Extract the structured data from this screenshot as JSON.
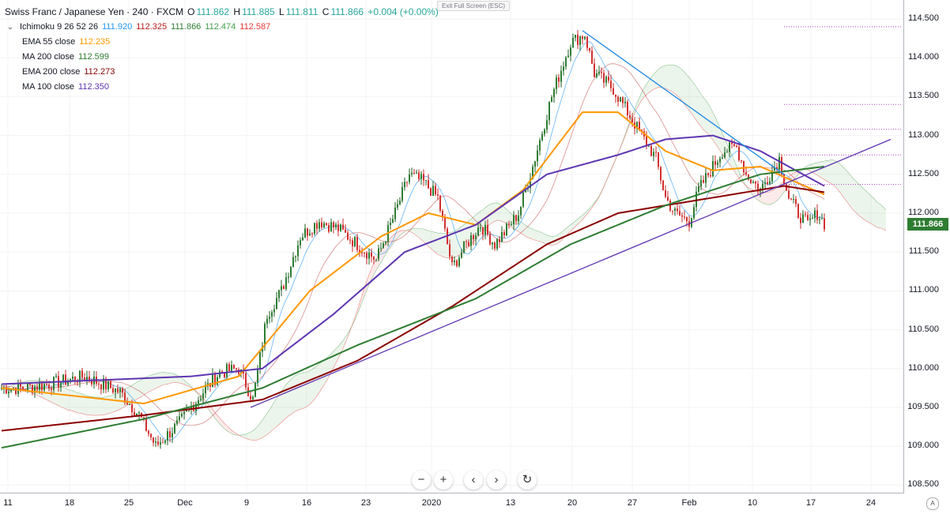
{
  "header": {
    "symbol": "Swiss Franc / Japanese Yen · 240 · FXCM",
    "ohlc": {
      "o_label": "O",
      "o": "111.862",
      "h_label": "H",
      "h": "111.885",
      "l_label": "L",
      "l": "111.811",
      "c_label": "C",
      "c": "111.866",
      "change": "+0.004 (+0.00%)"
    },
    "up_color": "#26a69a"
  },
  "exit_fullscreen": "Exit Full Screen (ESC)",
  "indicators": [
    {
      "name": "Ichimoku 9 26 52 26",
      "values": [
        {
          "v": "111.920",
          "color": "#2196f3"
        },
        {
          "v": "112.325",
          "color": "#b71c1c"
        },
        {
          "v": "111.866",
          "color": "#2e7d32"
        },
        {
          "v": "112.474",
          "color": "#43a047"
        },
        {
          "v": "112.587",
          "color": "#e53935"
        }
      ]
    },
    {
      "name": "EMA 55 close",
      "values": [
        {
          "v": "112.235",
          "color": "#ff9800"
        }
      ]
    },
    {
      "name": "MA 200 close",
      "values": [
        {
          "v": "112.599",
          "color": "#2e7d32"
        }
      ]
    },
    {
      "name": "EMA 200 close",
      "values": [
        {
          "v": "112.273",
          "color": "#8b0000"
        }
      ]
    },
    {
      "name": "MA 100 close",
      "values": [
        {
          "v": "112.350",
          "color": "#5e35b1"
        }
      ]
    }
  ],
  "price_label": "111.866",
  "price_label_color": "#2e7d32",
  "y_ticks": [
    "114.500",
    "114.000",
    "113.500",
    "113.000",
    "112.500",
    "112.000",
    "111.500",
    "111.000",
    "110.500",
    "110.000",
    "109.500",
    "109.000",
    "108.500"
  ],
  "x_ticks": [
    "11",
    "18",
    "25",
    "Dec",
    "9",
    "16",
    "23",
    "2020",
    "13",
    "20",
    "27",
    "Feb",
    "10",
    "17",
    "24"
  ],
  "controls": [
    {
      "name": "zoom-out-button",
      "glyph": "−"
    },
    {
      "name": "zoom-in-button",
      "glyph": "+"
    },
    {
      "name": "scroll-left-button",
      "glyph": "‹"
    },
    {
      "name": "scroll-right-button",
      "glyph": "›"
    },
    {
      "name": "reset-chart-button",
      "glyph": "↻"
    }
  ],
  "auto_scale_label": "A",
  "chart_data": {
    "type": "candlestick",
    "timeframe": "240",
    "x_labels": [
      "11",
      "18",
      "25",
      "Dec",
      "9",
      "16",
      "23",
      "2020",
      "13",
      "20",
      "27",
      "Feb",
      "10",
      "17",
      "24"
    ],
    "ylim": [
      108.5,
      114.55
    ],
    "y_ticks": [
      108.5,
      109.0,
      109.5,
      110.0,
      110.5,
      111.0,
      111.5,
      112.0,
      112.5,
      113.0,
      113.5,
      114.0,
      114.5
    ],
    "close_path_bars": [
      [
        0,
        109.75
      ],
      [
        10,
        109.75
      ],
      [
        20,
        109.8
      ],
      [
        35,
        109.9
      ],
      [
        50,
        109.7
      ],
      [
        58,
        109.4
      ],
      [
        65,
        109.0
      ],
      [
        75,
        109.3
      ],
      [
        85,
        109.7
      ],
      [
        92,
        109.95
      ],
      [
        100,
        110.0
      ],
      [
        106,
        109.6
      ],
      [
        112,
        110.7
      ],
      [
        118,
        111.0
      ],
      [
        126,
        111.7
      ],
      [
        134,
        111.9
      ],
      [
        142,
        111.8
      ],
      [
        150,
        111.6
      ],
      [
        158,
        111.4
      ],
      [
        166,
        112.0
      ],
      [
        172,
        112.5
      ],
      [
        178,
        112.4
      ],
      [
        184,
        112.2
      ],
      [
        190,
        111.3
      ],
      [
        196,
        111.6
      ],
      [
        202,
        111.85
      ],
      [
        208,
        111.6
      ],
      [
        212,
        111.75
      ],
      [
        218,
        112.0
      ],
      [
        224,
        112.6
      ],
      [
        232,
        113.5
      ],
      [
        240,
        114.2
      ],
      [
        246,
        114.3
      ],
      [
        250,
        113.8
      ],
      [
        258,
        113.6
      ],
      [
        264,
        113.3
      ],
      [
        270,
        113.0
      ],
      [
        276,
        112.7
      ],
      [
        280,
        112.2
      ],
      [
        284,
        112.0
      ],
      [
        290,
        111.9
      ],
      [
        294,
        112.3
      ],
      [
        298,
        112.5
      ],
      [
        304,
        112.8
      ],
      [
        310,
        112.85
      ],
      [
        314,
        112.5
      ],
      [
        320,
        112.3
      ],
      [
        324,
        112.5
      ],
      [
        328,
        112.7
      ],
      [
        332,
        112.2
      ],
      [
        336,
        112.0
      ],
      [
        340,
        111.85
      ],
      [
        344,
        112.0
      ],
      [
        347,
        111.87
      ]
    ],
    "series": [
      {
        "name": "EMA 55 close",
        "color": "#ff9800",
        "last": 112.235,
        "points": [
          [
            0,
            109.75
          ],
          [
            60,
            109.55
          ],
          [
            100,
            109.9
          ],
          [
            130,
            111.0
          ],
          [
            160,
            111.7
          ],
          [
            180,
            112.0
          ],
          [
            200,
            111.85
          ],
          [
            220,
            112.3
          ],
          [
            245,
            113.3
          ],
          [
            260,
            113.3
          ],
          [
            280,
            112.8
          ],
          [
            300,
            112.55
          ],
          [
            320,
            112.6
          ],
          [
            347,
            112.24
          ]
        ]
      },
      {
        "name": "MA 100 close",
        "color": "#5e35b1",
        "last": 112.35,
        "points": [
          [
            0,
            109.8
          ],
          [
            40,
            109.85
          ],
          [
            80,
            109.9
          ],
          [
            110,
            110.0
          ],
          [
            140,
            110.7
          ],
          [
            170,
            111.5
          ],
          [
            200,
            111.85
          ],
          [
            230,
            112.5
          ],
          [
            260,
            112.75
          ],
          [
            280,
            112.95
          ],
          [
            300,
            113.0
          ],
          [
            320,
            112.8
          ],
          [
            347,
            112.35
          ]
        ]
      },
      {
        "name": "EMA 200 close",
        "color": "#8b0000",
        "last": 112.273,
        "points": [
          [
            0,
            109.2
          ],
          [
            60,
            109.4
          ],
          [
            110,
            109.6
          ],
          [
            150,
            110.1
          ],
          [
            190,
            110.8
          ],
          [
            230,
            111.6
          ],
          [
            260,
            112.0
          ],
          [
            300,
            112.2
          ],
          [
            330,
            112.35
          ],
          [
            347,
            112.27
          ]
        ]
      },
      {
        "name": "MA 200 close",
        "color": "#2e7d32",
        "last": 112.599,
        "points": [
          [
            0,
            108.98
          ],
          [
            60,
            109.35
          ],
          [
            110,
            109.75
          ],
          [
            150,
            110.3
          ],
          [
            200,
            110.9
          ],
          [
            240,
            111.6
          ],
          [
            280,
            112.1
          ],
          [
            320,
            112.5
          ],
          [
            347,
            112.6
          ]
        ]
      }
    ],
    "trendlines": [
      {
        "color": "#1e88e5",
        "from": [
          245,
          114.35
        ],
        "to": [
          330,
          112.5
        ]
      },
      {
        "color": "#5e35b1",
        "from": [
          105,
          109.5
        ],
        "to": [
          375,
          112.95
        ]
      }
    ]
  }
}
